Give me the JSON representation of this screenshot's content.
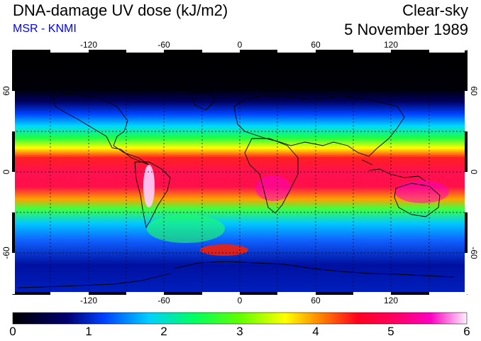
{
  "header": {
    "title": "DNA-damage UV dose (kJ/m2)",
    "credit": "MSR - KNMI",
    "sky_condition": "Clear-sky",
    "date": "5 November 1989"
  },
  "map": {
    "projection": "equirectangular",
    "lon_range": [
      -180,
      180
    ],
    "lat_range": [
      -90,
      90
    ],
    "lon_tick_labels": [
      "-120",
      "-60",
      "0",
      "60",
      "120"
    ],
    "lat_tick_labels": [
      "60",
      "0",
      "-60"
    ],
    "gridlines": "dashed every 30 degrees",
    "coastlines": true
  },
  "colorbar": {
    "ticks": [
      "0",
      "1",
      "2",
      "3",
      "4",
      "5",
      "6"
    ],
    "min": 0,
    "max": 6,
    "colors": [
      "#000000",
      "#0000aa",
      "#0050ff",
      "#00c8ff",
      "#00ff80",
      "#40ff00",
      "#ffff00",
      "#ffa000",
      "#ff2000",
      "#ff0050",
      "#ff00c0",
      "#ffc0ff"
    ]
  }
}
